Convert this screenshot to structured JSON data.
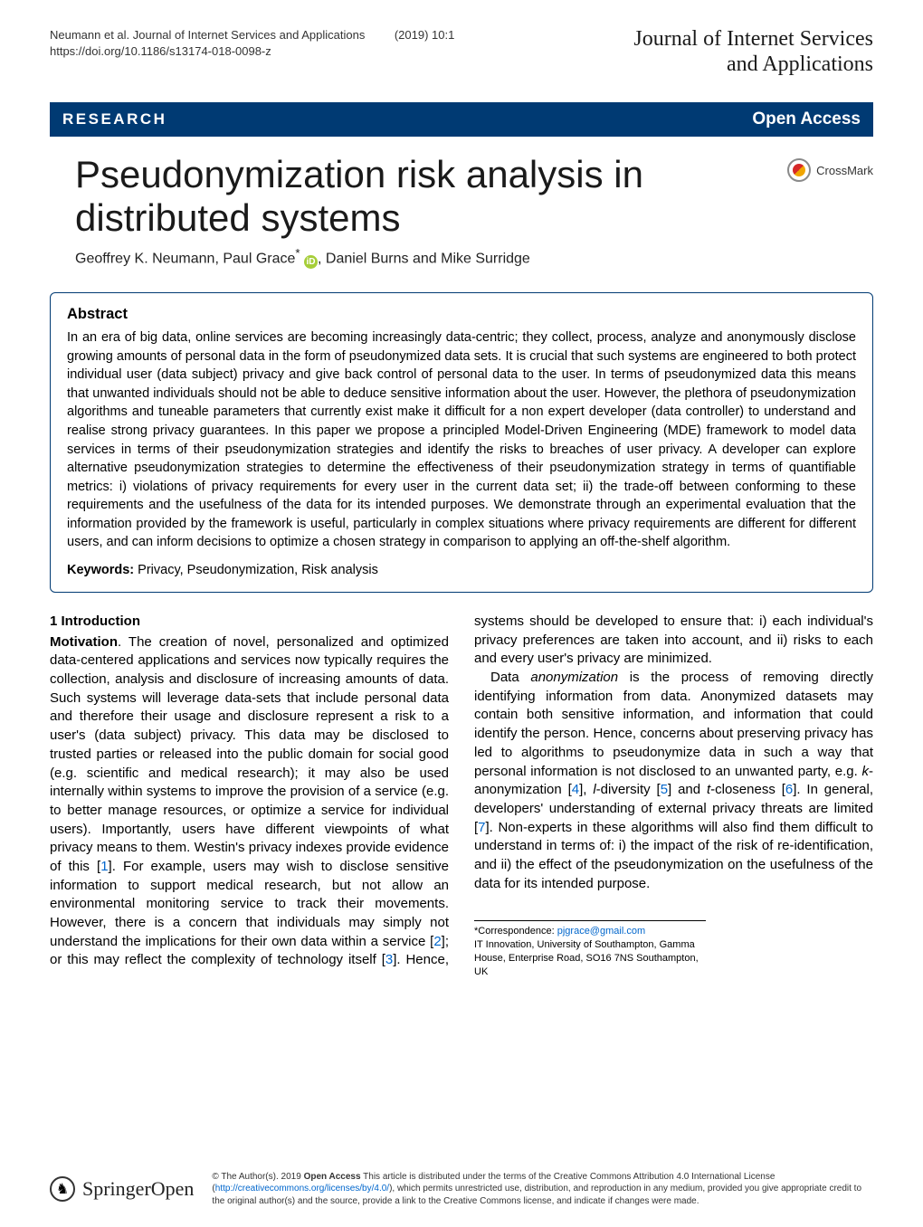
{
  "running": {
    "citation": "Neumann et al. Journal of Internet Services and Applications",
    "issue": "(2019) 10:1",
    "doi": "https://doi.org/10.1186/s13174-018-0098-z",
    "journal_line1": "Journal of Internet Services",
    "journal_line2": "and Applications"
  },
  "banner": {
    "left": "RESEARCH",
    "right": "Open Access"
  },
  "title": "Pseudonymization risk analysis in distributed systems",
  "crossmark_label": "CrossMark",
  "authors": {
    "a1": "Geoffrey K. Neumann, Paul Grace",
    "sup": "*",
    "a2": ", Daniel Burns and Mike Surridge"
  },
  "abstract": {
    "heading": "Abstract",
    "text": "In  an era of big data, online services are becoming increasingly data-centric; they collect, process, analyze and anonymously disclose growing amounts of personal data in the form of pseudonymized data sets. It is crucial that such systems are engineered to both protect individual user (data subject) privacy and give back control of personal data to the user. In terms of pseudonymized data this means that unwanted individuals should not be able to deduce sensitive information about the user. However, the plethora of pseudonymization algorithms and tuneable parameters that currently exist make it difficult for a non expert developer (data controller) to understand and realise strong privacy guarantees. In this paper we propose a principled Model-Driven Engineering (MDE) framework to model data services in terms of their pseudonymization strategies and identify the risks to breaches of user privacy. A developer can explore alternative pseudonymization strategies to determine the effectiveness of their pseudonymization strategy in terms of quantifiable metrics: i) violations of privacy requirements for every user in the current data set; ii) the trade-off between conforming to these requirements and the usefulness of the data for its intended purposes. We demonstrate through an experimental evaluation that the information provided by the framework is useful, particularly in complex situations where privacy requirements are different for different users, and can inform decisions to optimize a chosen strategy in comparison to applying an off-the-shelf algorithm.",
    "keywords_label": "Keywords:",
    "keywords_text": "  Privacy, Pseudonymization, Risk analysis"
  },
  "intro": {
    "heading": "1   Introduction",
    "p1a": "Motivation",
    "p1b": ". The creation of novel, personalized and optimized data-centered applications and services now typically requires the collection, analysis and disclosure of increasing amounts of data. Such systems will leverage data-sets that include personal data and therefore their usage and disclosure represent a risk to a user's (data subject) privacy. This data may be disclosed to trusted parties or released into the public domain for social good (e.g. scientific and medical research); it may also be used internally within systems to improve the provision of a service (e.g. to better manage resources, or optimize a service for individual users). Importantly, users have different viewpoints of what privacy means to them. Westin's privacy indexes provide evidence of this [",
    "ref1": "1",
    "p1c": "]. For example, users may wish to disclose sensitive information to support",
    "p2a": "medical research, but not allow an environmental monitoring service to track their movements. However, there is a concern that individuals may simply not understand the implications for their own data within a service [",
    "ref2": "2",
    "p2b": "]; or this may reflect the complexity of technology itself [",
    "ref3": "3",
    "p2c": "]. Hence, systems should be developed to ensure that: i) each individual's privacy preferences are taken into account, and ii) risks to each and every user's privacy are minimized.",
    "p3a": "Data ",
    "p3em": "anonymization",
    "p3b": " is the process of removing directly identifying information from data. Anonymized datasets may contain both sensitive information, and information that could identify the person. Hence, concerns about preserving privacy has led to algorithms to pseudonymize data in such a way that personal information is not disclosed to an unwanted party, e.g. ",
    "p3i1": "k",
    "p3c": "-anonymization [",
    "ref4": "4",
    "p3d": "], ",
    "p3i2": "l",
    "p3e": "-diversity [",
    "ref5": "5",
    "p3f": "] and ",
    "p3i3": "t",
    "p3g": "-closeness [",
    "ref6": "6",
    "p3h": "]. In general, developers' understanding of external privacy threats are limited [",
    "ref7": "7",
    "p3j": "]. Non-experts in these algorithms will also find them difficult to understand in terms of: i) the impact of the risk of re-identification, and ii) the effect of the pseudonymization on the usefulness of the data for its intended purpose."
  },
  "correspondence": {
    "label": "*Correspondence: ",
    "email": "pjgrace@gmail.com",
    "affil": "IT Innovation, University of Southampton, Gamma House, Enterprise Road, SO16 7NS Southampton, UK"
  },
  "footer": {
    "springer": "Springer",
    "open": "Open",
    "lic1": "© The Author(s). 2019 ",
    "lic_bold": "Open Access",
    "lic2": " This article is distributed under the terms of the Creative Commons Attribution 4.0 International License (",
    "lic_url": "http://creativecommons.org/licenses/by/4.0/",
    "lic3": "), which permits unrestricted use, distribution, and reproduction in any medium, provided you give appropriate credit to the original author(s) and the source, provide a link to the Creative Commons license, and indicate if changes were made."
  },
  "colors": {
    "banner_bg": "#003a73",
    "link": "#0066cc",
    "orcid": "#a6ce39"
  }
}
